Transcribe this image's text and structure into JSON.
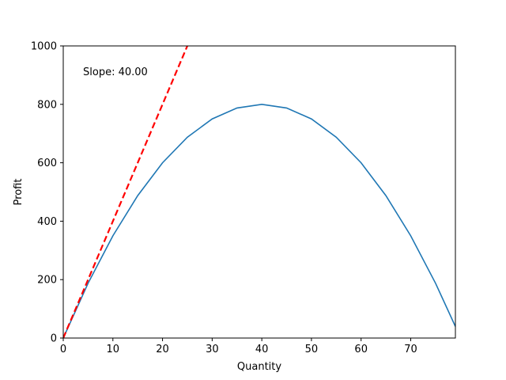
{
  "chart_data": {
    "type": "line",
    "xlabel": "Quantity",
    "ylabel": "Profit",
    "xlim": [
      0,
      79
    ],
    "ylim": [
      0,
      1000
    ],
    "x_ticks": [
      0,
      10,
      20,
      30,
      40,
      50,
      60,
      70
    ],
    "y_ticks": [
      0,
      200,
      400,
      600,
      800,
      1000
    ],
    "grid": false,
    "legend": "none",
    "annotation": "Slope: 40.00",
    "series": [
      {
        "color": "#1f77b4",
        "style": "solid",
        "x": [
          0,
          5,
          10,
          15,
          20,
          25,
          30,
          35,
          40,
          45,
          50,
          55,
          60,
          65,
          70,
          75,
          79
        ],
        "y": [
          0,
          187.5,
          350,
          487.5,
          600,
          687.5,
          750,
          787.5,
          800,
          787.5,
          750,
          687.5,
          600,
          487.5,
          350,
          187.5,
          39.5
        ]
      },
      {
        "color": "#ff0000",
        "style": "dashed",
        "x": [
          0,
          25
        ],
        "y": [
          0,
          1000
        ]
      }
    ]
  }
}
